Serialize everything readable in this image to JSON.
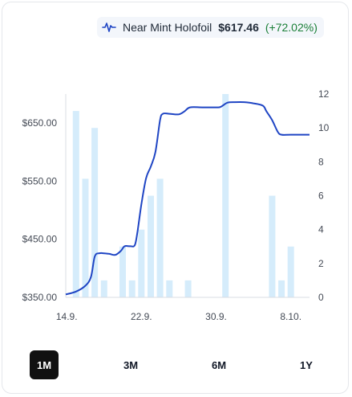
{
  "header": {
    "variant": "Near Mint Holofoil",
    "price": "$617.46",
    "change": "(+72.02%)",
    "change_color": "#1a7f37",
    "icon": "price-trend-icon"
  },
  "ranges": {
    "items": [
      "1M",
      "3M",
      "6M",
      "1Y"
    ],
    "active": "1M"
  },
  "colors": {
    "line": "#1f45c4",
    "bar": "#d5ecfb"
  },
  "chart_data": {
    "type": "line",
    "x_tick_labels": [
      "14.9.",
      "22.9.",
      "30.9.",
      "8.10."
    ],
    "x_range": [
      13.9,
      40.0
    ],
    "x_ticks": [
      14,
      22,
      30,
      38
    ],
    "left_axis": {
      "ticks": [
        "$350.00",
        "$450.00",
        "$550.00",
        "$650.00"
      ],
      "values": [
        350,
        450,
        550,
        650
      ],
      "ylim": [
        350,
        700
      ]
    },
    "right_axis": {
      "ticks": [
        "0",
        "2",
        "4",
        "6",
        "8",
        "10",
        "12"
      ],
      "values": [
        0,
        2,
        4,
        6,
        8,
        10,
        12
      ],
      "ylim": [
        0,
        12
      ]
    },
    "series": [
      {
        "axis": "left",
        "kind": "line",
        "points": [
          [
            13.9,
            355
          ],
          [
            15.0,
            360
          ],
          [
            16.0,
            370
          ],
          [
            16.6,
            385
          ],
          [
            17.0,
            420
          ],
          [
            17.5,
            426
          ],
          [
            18.5,
            425
          ],
          [
            19.2,
            423
          ],
          [
            19.8,
            430
          ],
          [
            20.2,
            438
          ],
          [
            20.8,
            438
          ],
          [
            21.3,
            440
          ],
          [
            21.6,
            465
          ],
          [
            22.0,
            510
          ],
          [
            22.5,
            555
          ],
          [
            23.0,
            575
          ],
          [
            23.5,
            600
          ],
          [
            24.0,
            655
          ],
          [
            24.3,
            666
          ],
          [
            25.0,
            666
          ],
          [
            26.0,
            665
          ],
          [
            26.6,
            670
          ],
          [
            27.2,
            677
          ],
          [
            28.5,
            677
          ],
          [
            30.0,
            677
          ],
          [
            30.5,
            678
          ],
          [
            31.2,
            685
          ],
          [
            32.0,
            686
          ],
          [
            33.0,
            686
          ],
          [
            34.0,
            684
          ],
          [
            35.0,
            680
          ],
          [
            35.4,
            670
          ],
          [
            36.0,
            655
          ],
          [
            36.6,
            635
          ],
          [
            37.0,
            630
          ],
          [
            38.0,
            630
          ],
          [
            40.0,
            630
          ]
        ]
      },
      {
        "axis": "right",
        "kind": "bar",
        "points": [
          [
            15,
            11
          ],
          [
            16,
            7
          ],
          [
            17,
            10
          ],
          [
            18,
            1
          ],
          [
            20,
            3
          ],
          [
            21,
            1
          ],
          [
            22,
            4
          ],
          [
            23,
            6
          ],
          [
            24,
            7
          ],
          [
            25,
            1
          ],
          [
            27,
            1
          ],
          [
            31,
            12
          ],
          [
            36,
            6
          ],
          [
            37,
            1
          ],
          [
            38,
            3
          ]
        ]
      }
    ]
  }
}
